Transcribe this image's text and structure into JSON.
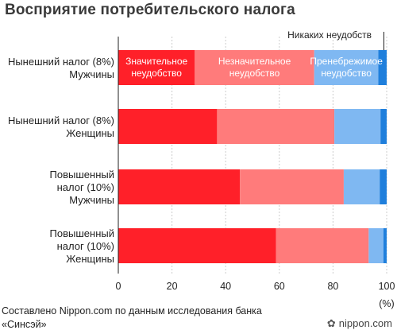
{
  "title": "Восприятие потребительского налога",
  "source": "Составлено Nippon.com по данным исследования банка «Синсэй»",
  "brand": "nippon.com",
  "colors": {
    "significant": "#ff2029",
    "insignificant": "#ff7b7b",
    "negligible": "#7fb8f2",
    "none": "#1f7fdc",
    "grid": "#cccccc",
    "axis": "#222222"
  },
  "chart_data": {
    "type": "bar",
    "orientation": "horizontal",
    "stacked": true,
    "categories": [
      [
        "Нынешний налог (8%)",
        "Мужчины"
      ],
      [
        "Нынешний налог (8%)",
        "Женщины"
      ],
      [
        "Повышенный",
        "налог (10%)",
        "Мужчины"
      ],
      [
        "Повышенный",
        "налог (10%)",
        "Женщины"
      ]
    ],
    "series": [
      {
        "name": "Значительное неудобство",
        "label_lines": [
          "Значительное",
          "неудобство"
        ],
        "color_key": "significant",
        "values": [
          28.5,
          36.8,
          45.3,
          58.8
        ]
      },
      {
        "name": "Незначительное неудобство",
        "label_lines": [
          "Незначительное",
          "неудобство"
        ],
        "color_key": "insignificant",
        "values": [
          44.5,
          43.7,
          38.7,
          34.5
        ]
      },
      {
        "name": "Пренебрежимое неудобство",
        "label_lines": [
          "Пренебрежимое",
          "неудобство"
        ],
        "color_key": "negligible",
        "values": [
          23.9,
          17.2,
          13.4,
          5.5
        ]
      },
      {
        "name": "Никаких неудобств",
        "label_lines": [
          "Никаких неудобств"
        ],
        "color_key": "none",
        "values": [
          3.1,
          2.3,
          2.6,
          1.2
        ]
      }
    ],
    "xlim": [
      0,
      100
    ],
    "xticks": [
      0,
      20,
      40,
      60,
      80,
      100
    ],
    "xunit": "(%)",
    "grid": true,
    "legend": "inline in first bar"
  }
}
